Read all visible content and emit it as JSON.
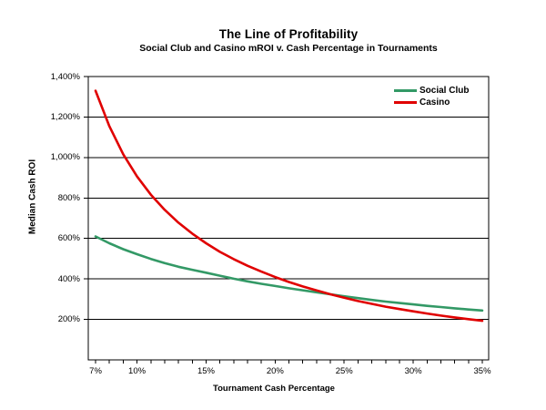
{
  "chart_data": {
    "type": "line",
    "title": "The Line of Profitability",
    "subtitle": "Social Club and Casino mROI v. Cash Percentage in Tournaments",
    "xlabel": "Tournament Cash Percentage",
    "ylabel": "Median Cash ROI",
    "xlim": [
      6.47,
      35.46
    ],
    "ylim": [
      0,
      1400
    ],
    "grid": "horizontal",
    "legend_position": "top-right-inside",
    "x_unit": "percent",
    "x": [
      7,
      8,
      9,
      10,
      11,
      12,
      13,
      14,
      15,
      16,
      17,
      18,
      19,
      20,
      21,
      22,
      23,
      24,
      25,
      26,
      27,
      28,
      29,
      30,
      31,
      32,
      33,
      34,
      35
    ],
    "series": [
      {
        "name": "Social Club",
        "color": "#339966",
        "values": [
          610,
          576,
          547,
          522,
          499,
          478,
          460,
          445,
          431,
          416,
          401,
          388,
          376,
          365,
          354,
          344,
          334,
          324,
          314,
          305,
          296,
          288,
          281,
          274,
          267,
          261,
          255,
          249,
          244
        ]
      },
      {
        "name": "Casino",
        "color": "#E00000",
        "values": [
          1330,
          1154,
          1016,
          906,
          816,
          742,
          678,
          624,
          576,
          534,
          498,
          465,
          436,
          409,
          385,
          363,
          343,
          324,
          307,
          291,
          277,
          263,
          251,
          240,
          229,
          219,
          210,
          201,
          193
        ]
      }
    ],
    "y_axis": {
      "tick_values": [
        200,
        400,
        600,
        800,
        1000,
        1200,
        1400
      ],
      "tick_labels": [
        "200%",
        "400%",
        "600%",
        "800%",
        "1,000%",
        "1,200%",
        "1,400%"
      ]
    },
    "x_axis": {
      "tick_label_values": [
        7,
        10,
        15,
        20,
        25,
        30,
        35
      ],
      "tick_labels": [
        "7%",
        "10%",
        "15%",
        "20%",
        "25%",
        "30%",
        "35%"
      ],
      "minor_tick_values": [
        7,
        8,
        9,
        10,
        11,
        12,
        13,
        14,
        15,
        16,
        17,
        18,
        19,
        20,
        21,
        22,
        23,
        24,
        25,
        26,
        27,
        28,
        29,
        30,
        31,
        32,
        33,
        34,
        35
      ]
    },
    "plot_border_color": "#000000",
    "gridline_color": "#000000"
  }
}
